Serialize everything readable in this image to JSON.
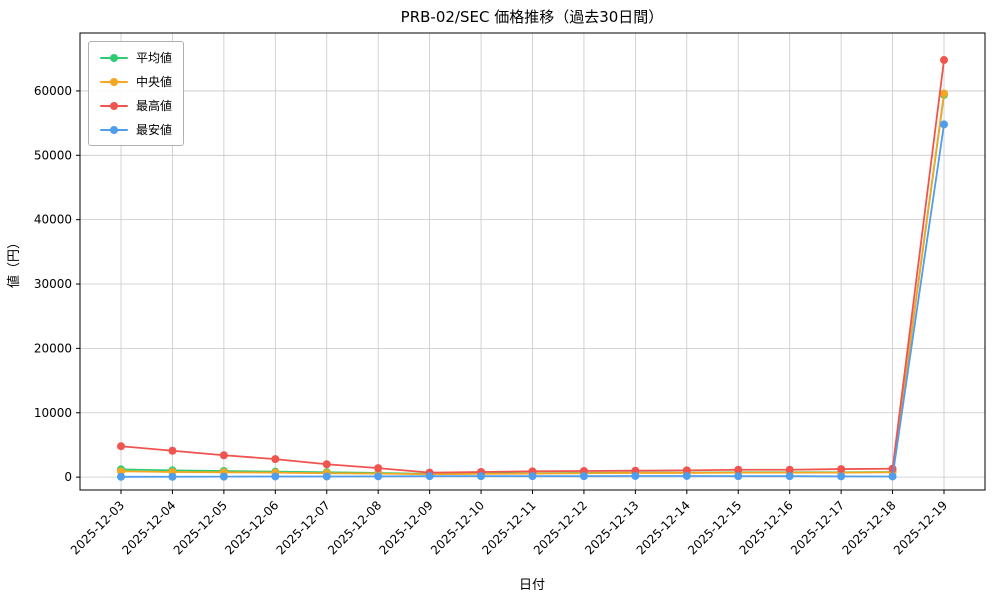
{
  "chart_data": {
    "type": "line",
    "title": "PRB-02/SEC 価格推移（過去30日間）",
    "xlabel": "日付",
    "ylabel": "値（円）",
    "x": [
      "2025-12-03",
      "2025-12-04",
      "2025-12-05",
      "2025-12-06",
      "2025-12-07",
      "2025-12-08",
      "2025-12-09",
      "2025-12-10",
      "2025-12-11",
      "2025-12-12",
      "2025-12-13",
      "2025-12-14",
      "2025-12-15",
      "2025-12-16",
      "2025-12-17",
      "2025-12-18",
      "2025-12-19"
    ],
    "series": [
      {
        "name": "平均値",
        "color": "#2ecc71",
        "values": [
          1200,
          1050,
          950,
          850,
          750,
          650,
          500,
          550,
          600,
          650,
          700,
          700,
          750,
          750,
          750,
          800,
          59400
        ]
      },
      {
        "name": "中央値",
        "color": "#f5a623",
        "values": [
          900,
          800,
          750,
          700,
          600,
          550,
          450,
          500,
          550,
          600,
          650,
          650,
          700,
          700,
          700,
          750,
          59600
        ]
      },
      {
        "name": "最高値",
        "color": "#f0544f",
        "values": [
          4800,
          4100,
          3400,
          2800,
          2000,
          1400,
          700,
          800,
          900,
          950,
          1000,
          1050,
          1150,
          1150,
          1250,
          1300,
          64800
        ]
      },
      {
        "name": "最安値",
        "color": "#4f9ded",
        "values": [
          50,
          60,
          80,
          100,
          100,
          120,
          150,
          150,
          150,
          150,
          180,
          180,
          150,
          150,
          120,
          100,
          54800
        ]
      }
    ],
    "ylim": [
      -2000,
      69000
    ],
    "yticks": [
      0,
      10000,
      20000,
      30000,
      40000,
      50000,
      60000
    ],
    "grid": true,
    "grid_color": "#c8c8c8",
    "legend_position": "upper-left"
  }
}
